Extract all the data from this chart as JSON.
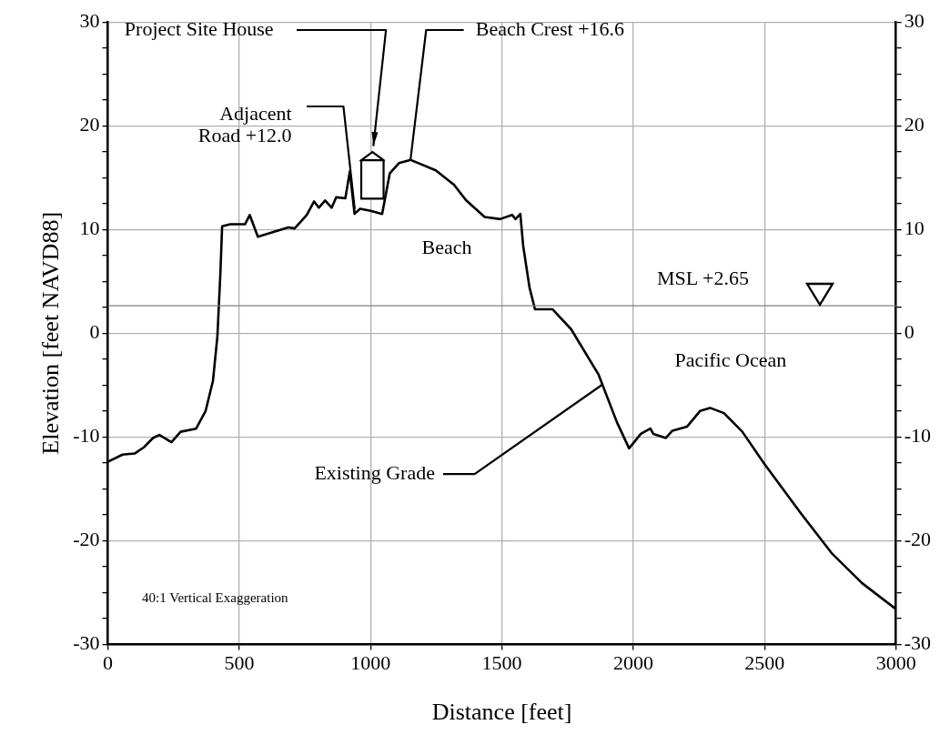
{
  "chart_data": {
    "type": "line",
    "xlabel": "Distance [feet]",
    "ylabel": "Elevation [feet NAVD88]",
    "xlim": [
      0,
      3000
    ],
    "xticks": [
      0,
      500,
      1000,
      1500,
      2000,
      2500,
      3000
    ],
    "ylim": [
      -30,
      30
    ],
    "yticks": [
      -30,
      {
        "value": -27.5,
        "label": null
      },
      {
        "value": -25,
        "label": null
      },
      {
        "value": -22.5,
        "label": null
      },
      -20,
      {
        "value": -17.5,
        "label": null
      },
      {
        "value": -15,
        "label": null
      },
      {
        "value": -12.5,
        "label": null
      },
      -10,
      {
        "value": -7.5,
        "label": null
      },
      {
        "value": -5,
        "label": null
      },
      {
        "value": -2.5,
        "label": null
      },
      0,
      {
        "value": 2.5,
        "label": null
      },
      {
        "value": 5,
        "label": null
      },
      {
        "value": 7.5,
        "label": null
      },
      10,
      {
        "value": 12.5,
        "label": null
      },
      {
        "value": 15,
        "label": null
      },
      {
        "value": 17.5,
        "label": null
      },
      20,
      {
        "value": 22.5,
        "label": null
      },
      {
        "value": 25,
        "label": null
      },
      {
        "value": 27.5,
        "label": null
      },
      30
    ],
    "y2lim": [
      -30,
      30
    ],
    "y2ticks": [
      -30,
      {
        "value": -27.5,
        "label": null
      },
      {
        "value": -25,
        "label": null
      },
      {
        "value": -22.5,
        "label": null
      },
      -20,
      {
        "value": -17.5,
        "label": null
      },
      {
        "value": -15,
        "label": null
      },
      {
        "value": -12.5,
        "label": null
      },
      -10,
      {
        "value": -7.5,
        "label": null
      },
      {
        "value": -5,
        "label": null
      },
      {
        "value": -2.5,
        "label": null
      },
      0,
      {
        "value": 2.5,
        "label": null
      },
      {
        "value": 5,
        "label": null
      },
      {
        "value": 7.5,
        "label": null
      },
      10,
      {
        "value": 12.5,
        "label": null
      },
      {
        "value": 15,
        "label": null
      },
      {
        "value": 17.5,
        "label": null
      },
      20,
      {
        "value": 22.5,
        "label": null
      },
      {
        "value": 25,
        "label": null
      },
      {
        "value": 27.5,
        "label": null
      },
      30
    ],
    "grid": true,
    "legend": false,
    "marker": "none",
    "line_style": "solid",
    "series": [
      {
        "color": "#000000",
        "x": [
          0,
          56,
          102,
          137,
          172,
          196,
          242,
          277,
          336,
          372,
          400,
          417,
          428,
          435,
          466,
          522,
          540,
          571,
          687,
          711,
          757,
          785,
          803,
          827,
          852,
          869,
          904,
          921,
          939,
          960,
          1000,
          1044,
          1073,
          1108,
          1153,
          1248,
          1318,
          1364,
          1434,
          1493,
          1539,
          1552,
          1570,
          1581,
          1605,
          1626,
          1693,
          1763,
          1868,
          1938,
          1984,
          2029,
          2065,
          2076,
          2124,
          2149,
          2205,
          2254,
          2292,
          2345,
          2415,
          2499,
          2639,
          2755,
          2871,
          3000
        ],
        "values": [
          -12.4,
          -11.7,
          -11.6,
          -11,
          -10.1,
          -9.8,
          -10.5,
          -9.5,
          -9.2,
          -7.5,
          -4.6,
          -0.3,
          5.6,
          10.3,
          10.5,
          10.5,
          11.4,
          9.3,
          10.2,
          10.1,
          11.4,
          12.7,
          12.1,
          12.8,
          12.1,
          13.1,
          13,
          15.6,
          11.5,
          12,
          11.8,
          11.5,
          15.4,
          16.4,
          16.7,
          15.7,
          14.3,
          12.8,
          11.2,
          11,
          11.4,
          11,
          11.5,
          8.4,
          4.4,
          2.3,
          2.3,
          0.4,
          -4,
          -8.6,
          -11.1,
          -9.7,
          -9.2,
          -9.7,
          -10.1,
          -9.4,
          -9,
          -7.5,
          -7.2,
          -7.7,
          -9.5,
          -12.6,
          -17.4,
          -21.2,
          -24.1,
          -26.6
        ]
      }
    ],
    "ref_lines": [
      {
        "axis": "y",
        "value": 2.65,
        "label": "MSL +2.65",
        "color": "#808080"
      }
    ],
    "annotations": [
      "Project Site House",
      {
        "text": "Adjacent Road +12.0",
        "x": 940,
        "y": 12.0
      },
      {
        "text": "Beach Crest +16.6",
        "x": 1153,
        "y": 16.6
      },
      {
        "text": "Existing Grade",
        "x": 1880,
        "y": -5
      },
      "Beach",
      "Pacific Ocean",
      "40:1 Vertical Exaggeration"
    ]
  }
}
